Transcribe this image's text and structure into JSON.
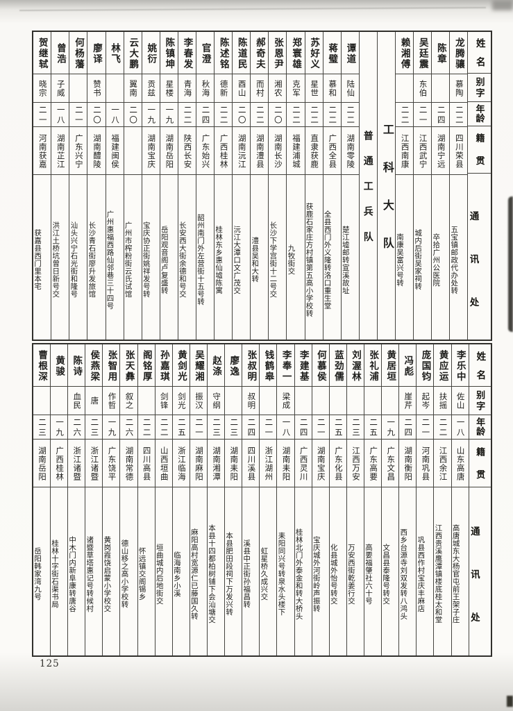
{
  "page_number": "125",
  "column_headers": [
    "姓名",
    "别字",
    "年龄",
    "籍贯",
    "通讯处"
  ],
  "ink_color": "#1d1d1b",
  "paper_color": "#fbfaf7",
  "tables": [
    {
      "name": "top",
      "columns": [
        {
          "type": "header"
        },
        {
          "type": "person",
          "name": "龙腾骧",
          "zi": "慕陶",
          "age": "二二",
          "origin": "四川荣县",
          "addr": "五宝镇邮政代办处转"
        },
        {
          "type": "person",
          "name": "陈章",
          "zi": "",
          "age": "二四",
          "origin": "湖南宁远",
          "addr": "卒拾广州公医院"
        },
        {
          "type": "person",
          "name": "吴廷震",
          "zi": "东伯",
          "age": "二一",
          "origin": "江西武宁",
          "addr": "城内后街吴家祠转"
        },
        {
          "type": "person",
          "name": "赖湘傅",
          "zi": "",
          "age": "二二",
          "origin": "江西南康",
          "addr": "南康吴富兴号转"
        },
        {
          "type": "section",
          "label": "工科大队",
          "size": "large"
        },
        {
          "type": "section",
          "label": "普通工兵队",
          "size": "medium"
        },
        {
          "type": "person",
          "name": "谭道",
          "zi": "陆仙",
          "age": "二二",
          "origin": "湖南零陵",
          "addr": "楚江墟邮转宣溪故址"
        },
        {
          "type": "person",
          "name": "蒋璧",
          "zi": "慕和",
          "age": "二二",
          "origin": "广西全县",
          "addr": "全县西门外义隆转洛口重生堂"
        },
        {
          "type": "person",
          "name": "苏好义",
          "zi": "星世",
          "age": "二二",
          "origin": "直隶获鹿",
          "addr": "获鹿石家庄方村镇第五高小学校转"
        },
        {
          "type": "person",
          "name": "郑寰雄",
          "zi": "克军",
          "age": "二二",
          "origin": "福建浦城",
          "addr": "九牧街交"
        },
        {
          "type": "person",
          "name": "张恩尹",
          "zi": "湘农",
          "age": "二〇",
          "origin": "湖南长沙",
          "addr": "长沙下学宫街十二号交"
        },
        {
          "type": "person",
          "name": "郝奇夫",
          "zi": "而村",
          "age": "二二",
          "origin": "湖南澧县",
          "addr": "澧县吴和大转"
        },
        {
          "type": "person",
          "name": "陈道民",
          "zi": "酉山",
          "age": "二〇",
          "origin": "湖南沅江",
          "addr": "沅江大潭口文广茂交"
        },
        {
          "type": "person",
          "name": "陈述铭",
          "zi": "德新",
          "age": "二二",
          "origin": "广西桂林",
          "addr": "桂林东乡惠仙墟陈寓"
        },
        {
          "type": "person",
          "name": "官澄",
          "zi": "秋海",
          "age": "二四",
          "origin": "广东始兴",
          "addr": "韶州南门外左营街十五号转"
        },
        {
          "type": "person",
          "name": "李春发",
          "zi": "青海",
          "age": "二二",
          "origin": "陕西长安",
          "addr": "长安西大街余德和号交"
        },
        {
          "type": "person",
          "name": "陈镇坤",
          "zi": "星楼",
          "age": "一九",
          "origin": "湖南岳阳",
          "addr": "岳阳观音阁卢复盛转"
        },
        {
          "type": "person",
          "name": "姚衍",
          "zi": "贡兹",
          "age": "一九",
          "origin": "湖南宝庆",
          "addr": "宝庆协正街姚祥发号转"
        },
        {
          "type": "person",
          "name": "云大鹏",
          "zi": "翼南",
          "age": "二〇",
          "origin": "",
          "addr": "广州市榨粉街云氏试馆"
        },
        {
          "type": "person",
          "name": "林飞",
          "zi": "",
          "age": "一八",
          "origin": "福建闽侯",
          "addr": "广州惠福西路仙邻巷三十四号"
        },
        {
          "type": "person",
          "name": "廖译",
          "zi": "赞书",
          "age": "二〇",
          "origin": "湖南醴陵",
          "addr": "长沙青石街廖升发旅馆"
        },
        {
          "type": "person",
          "name": "何杨藩",
          "zi": "",
          "age": "二一",
          "origin": "广东兴宁",
          "addr": "汕头兴宁石光街和隆号"
        },
        {
          "type": "person",
          "name": "曾浩",
          "zi": "子威",
          "age": "一八",
          "origin": "湖南芷江",
          "addr": "洪江土桥坑曾日新号交"
        },
        {
          "type": "person",
          "name": "贺继轼",
          "zi": "晓宗",
          "age": "二一",
          "origin": "河南获嘉",
          "addr": "获嘉县西门里本宅"
        }
      ]
    },
    {
      "name": "bottom",
      "columns": [
        {
          "type": "header"
        },
        {
          "type": "person",
          "name": "李乐中",
          "zi": "佐山",
          "age": "一八",
          "origin": "山东高唐",
          "addr": "高唐城东大杨官屯前王架子庄"
        },
        {
          "type": "person",
          "name": "黄应运",
          "zi": "扶摇",
          "age": "二二",
          "origin": "江西余江",
          "addr": "江西贵溪鹰潭镇楼底桂太和堂"
        },
        {
          "type": "person",
          "name": "庞国钧",
          "zi": "起岑",
          "age": "二一",
          "origin": "河南巩县",
          "addr": "巩县西作村宝庆丰麻店"
        },
        {
          "type": "person",
          "name": "冯彪",
          "zi": "崖芹",
          "age": "二四",
          "origin": "湖南衡阳",
          "addr": "西乡台源寺刘双发转八鸿头"
        },
        {
          "type": "person",
          "name": "黄居垣",
          "zi": "",
          "age": "一九",
          "origin": "广东文昌",
          "addr": "文昌县泰隆号转交"
        },
        {
          "type": "person",
          "name": "张礼浦",
          "zi": "",
          "age": "二五",
          "origin": "广东高要",
          "addr": "高要福肇社六十号"
        },
        {
          "type": "person",
          "name": "刘渥林",
          "zi": "",
          "age": "二三",
          "origin": "江西万安",
          "addr": "万安西街乾姜行交"
        },
        {
          "type": "person",
          "name": "蓝劲儒",
          "zi": "",
          "age": "二五",
          "origin": "广东化县",
          "addr": "化县城外怡号转交"
        },
        {
          "type": "person",
          "name": "何慕侯",
          "zi": "",
          "age": "二一",
          "origin": "湖南宝庆",
          "addr": "宝庆城外河街岭声振转"
        },
        {
          "type": "person",
          "name": "李建基",
          "zi": "",
          "age": "二四",
          "origin": "广西灵川",
          "addr": "桂林北门外泰金和转大桥头"
        },
        {
          "type": "person",
          "name": "李奉一",
          "zi": "梁成",
          "age": "一八",
          "origin": "湖南耒阳",
          "addr": "耒阳同兴号转泉水头楼下"
        },
        {
          "type": "person",
          "name": "钱鹤皋",
          "zi": "",
          "age": "二一",
          "origin": "浙江湖州",
          "addr": "虹星桥久成兴交"
        },
        {
          "type": "person",
          "name": "张叔明",
          "zi": "叔明",
          "age": "二四",
          "origin": "四川溪县",
          "addr": "溪县中正街孙福昌转"
        },
        {
          "type": "person",
          "name": "廖逸",
          "zi": "",
          "age": "二三",
          "origin": "湖南耒阳",
          "addr": "本县肥田段祠下万发兴转"
        },
        {
          "type": "person",
          "name": "赵涤",
          "zi": "守纲",
          "age": "二三",
          "origin": "湖南湘潭",
          "addr": "本县十四都柏树铺下会汕塘交"
        },
        {
          "type": "person",
          "name": "吴耀湘",
          "zi": "振汉",
          "age": "二一",
          "origin": "湖南麻阳",
          "addr": "麻阳高村宽源仁已藤国久转"
        },
        {
          "type": "person",
          "name": "黄剑光",
          "zi": "剑光",
          "age": "二五",
          "origin": "浙江临海",
          "addr": "临海南乡小溪"
        },
        {
          "type": "person",
          "name": "孙嘉琪",
          "zi": "剑锋",
          "age": "二二",
          "origin": "山西垣曲",
          "addr": "垣曲城内后地街交"
        },
        {
          "type": "person",
          "name": "阁铭厚",
          "zi": "",
          "age": "二二",
          "origin": "四川高县",
          "addr": "怀远镇交阁锡乡"
        },
        {
          "type": "person",
          "name": "张天彝",
          "zi": "叙之",
          "age": "二六",
          "origin": "湖南常德",
          "addr": "德山移之高小学校转"
        },
        {
          "type": "person",
          "name": "张智用",
          "zi": "作哲",
          "age": "一九",
          "origin": "广东饶平",
          "addr": "黄岗霞饶启蒙小学校交"
        },
        {
          "type": "person",
          "name": "侯燕梁",
          "zi": "唐",
          "age": "二三",
          "origin": "浙江诸暨",
          "addr": "诸暨草塔惠记号转候村"
        },
        {
          "type": "person",
          "name": "陈诗",
          "zi": "血民",
          "age": "二六",
          "origin": "浙江诸暨",
          "addr": "中木门内新阜康转唐谷"
        },
        {
          "type": "person",
          "name": "黄骏",
          "zi": "",
          "age": "一九",
          "origin": "广西桂林",
          "addr": "桂林十字街石渠书局"
        },
        {
          "type": "person",
          "name": "曹根深",
          "zi": "",
          "age": "二三",
          "origin": "湖南岳阳",
          "addr": "岳阳韩家湾九号"
        }
      ]
    }
  ]
}
